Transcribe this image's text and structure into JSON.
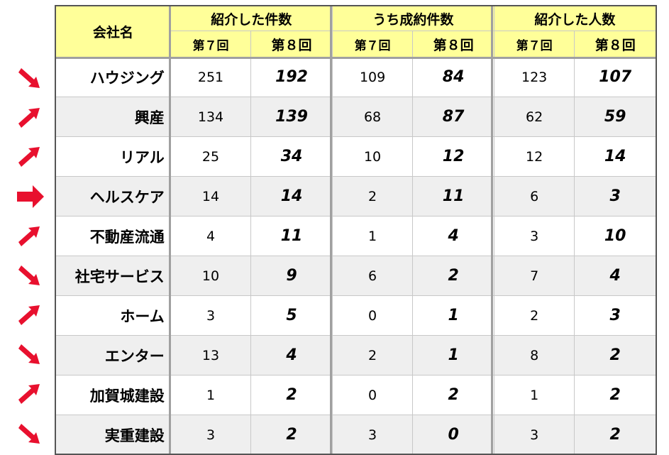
{
  "header": {
    "company_label": "会社名",
    "groups": [
      "紹介した件数",
      "うち成約件数",
      "紹介した人数"
    ],
    "sub_prev": "第７回",
    "sub_curr": "第８回"
  },
  "colors": {
    "header_bg": "#ffff99",
    "arrow": "#e8102e",
    "stripe": "#efefef"
  },
  "rows": [
    {
      "name": "ハウジング",
      "trend": "down",
      "v": [
        "251",
        "192",
        "109",
        "84",
        "123",
        "107"
      ]
    },
    {
      "name": "興産",
      "trend": "up",
      "v": [
        "134",
        "139",
        "68",
        "87",
        "62",
        "59"
      ]
    },
    {
      "name": "リアル",
      "trend": "up",
      "v": [
        "25",
        "34",
        "10",
        "12",
        "12",
        "14"
      ]
    },
    {
      "name": "ヘルスケア",
      "trend": "flat",
      "v": [
        "14",
        "14",
        "2",
        "11",
        "6",
        "3"
      ]
    },
    {
      "name": "不動産流通",
      "trend": "up",
      "v": [
        "4",
        "11",
        "1",
        "4",
        "3",
        "10"
      ]
    },
    {
      "name": "社宅サービス",
      "trend": "down",
      "v": [
        "10",
        "9",
        "6",
        "2",
        "7",
        "4"
      ]
    },
    {
      "name": "ホーム",
      "trend": "up",
      "v": [
        "3",
        "5",
        "0",
        "1",
        "2",
        "3"
      ]
    },
    {
      "name": "エンター",
      "trend": "down",
      "v": [
        "13",
        "4",
        "2",
        "1",
        "8",
        "2"
      ]
    },
    {
      "name": "加賀城建設",
      "trend": "up",
      "v": [
        "1",
        "2",
        "0",
        "2",
        "1",
        "2"
      ]
    },
    {
      "name": "実重建設",
      "trend": "down",
      "v": [
        "3",
        "2",
        "3",
        "0",
        "3",
        "2"
      ]
    }
  ]
}
